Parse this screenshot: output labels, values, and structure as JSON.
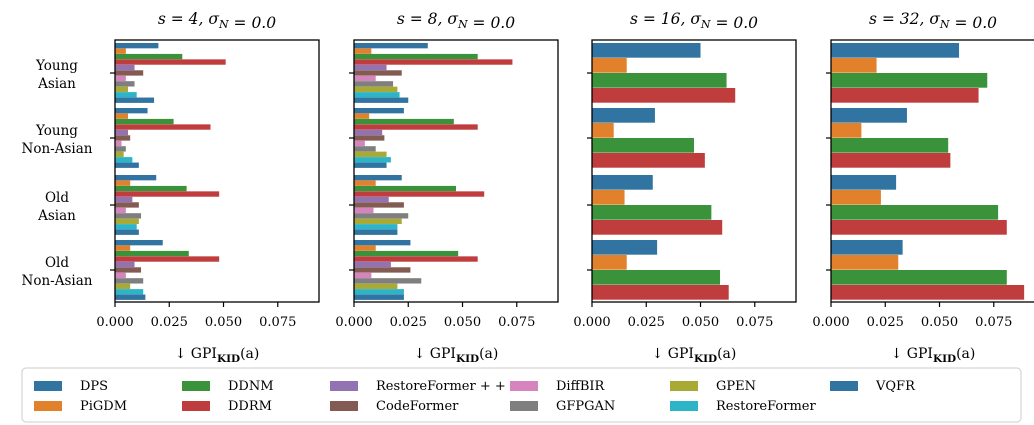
{
  "chart_data": {
    "type": "bar",
    "orientation": "horizontal",
    "categories": [
      "Young\nAsian",
      "Young\nNon-Asian",
      "Old\nAsian",
      "Old\nNon-Asian"
    ],
    "xlabel": "↓ GPI_KID(a)",
    "x_ticks": [
      0.0,
      0.025,
      0.05,
      0.075
    ],
    "x_tick_labels": [
      "0.000",
      "0.025",
      "0.050",
      "0.075"
    ],
    "legend_position": "bottom",
    "legend": [
      {
        "name": "DPS",
        "color": "#3274a1"
      },
      {
        "name": "PiGDM",
        "color": "#e1812c"
      },
      {
        "name": "DDNM",
        "color": "#3a923a"
      },
      {
        "name": "DDRM",
        "color": "#c03d3e"
      },
      {
        "name": "RestoreFormer++",
        "color": "#9372b2"
      },
      {
        "name": "CodeFormer",
        "color": "#845b53"
      },
      {
        "name": "DiffBIR",
        "color": "#d684bd"
      },
      {
        "name": "GFPGAN",
        "color": "#7f7f7f"
      },
      {
        "name": "GPEN",
        "color": "#a9aa35"
      },
      {
        "name": "RestoreFormer",
        "color": "#2eb4c7"
      },
      {
        "name": "VQFR",
        "color": "#3274a1"
      }
    ],
    "panels": [
      {
        "title": "s = 4, σ_N = 0.0",
        "xlim": [
          0,
          0.094
        ],
        "series": [
          {
            "name": "DPS",
            "values": [
              0.02,
              0.015,
              0.019,
              0.022
            ]
          },
          {
            "name": "PiGDM",
            "values": [
              0.005,
              0.006,
              0.007,
              0.007
            ]
          },
          {
            "name": "DDNM",
            "values": [
              0.031,
              0.027,
              0.033,
              0.034
            ]
          },
          {
            "name": "DDRM",
            "values": [
              0.051,
              0.044,
              0.048,
              0.048
            ]
          },
          {
            "name": "RestoreFormer++",
            "values": [
              0.009,
              0.006,
              0.008,
              0.009
            ]
          },
          {
            "name": "CodeFormer",
            "values": [
              0.013,
              0.007,
              0.011,
              0.012
            ]
          },
          {
            "name": "DiffBIR",
            "values": [
              0.005,
              0.003,
              0.005,
              0.005
            ]
          },
          {
            "name": "GFPGAN",
            "values": [
              0.009,
              0.005,
              0.012,
              0.013
            ]
          },
          {
            "name": "GPEN",
            "values": [
              0.006,
              0.004,
              0.011,
              0.007
            ]
          },
          {
            "name": "RestoreFormer",
            "values": [
              0.01,
              0.008,
              0.01,
              0.013
            ]
          },
          {
            "name": "VQFR",
            "values": [
              0.018,
              0.011,
              0.011,
              0.014
            ]
          }
        ]
      },
      {
        "title": "s = 8, σ_N = 0.0",
        "xlim": [
          0,
          0.094
        ],
        "series": [
          {
            "name": "DPS",
            "values": [
              0.034,
              0.023,
              0.022,
              0.026
            ]
          },
          {
            "name": "PiGDM",
            "values": [
              0.008,
              0.007,
              0.01,
              0.01
            ]
          },
          {
            "name": "DDNM",
            "values": [
              0.057,
              0.046,
              0.047,
              0.048
            ]
          },
          {
            "name": "DDRM",
            "values": [
              0.073,
              0.057,
              0.06,
              0.057
            ]
          },
          {
            "name": "RestoreFormer++",
            "values": [
              0.015,
              0.013,
              0.016,
              0.017
            ]
          },
          {
            "name": "CodeFormer",
            "values": [
              0.022,
              0.014,
              0.023,
              0.026
            ]
          },
          {
            "name": "DiffBIR",
            "values": [
              0.01,
              0.005,
              0.009,
              0.008
            ]
          },
          {
            "name": "GFPGAN",
            "values": [
              0.018,
              0.01,
              0.025,
              0.031
            ]
          },
          {
            "name": "GPEN",
            "values": [
              0.02,
              0.015,
              0.022,
              0.02
            ]
          },
          {
            "name": "RestoreFormer",
            "values": [
              0.021,
              0.017,
              0.02,
              0.023
            ]
          },
          {
            "name": "VQFR",
            "values": [
              0.025,
              0.015,
              0.02,
              0.023
            ]
          }
        ]
      },
      {
        "title": "s = 16, σ_N = 0.0",
        "xlim": [
          0,
          0.094
        ],
        "series": [
          {
            "name": "DPS",
            "values": [
              0.05,
              0.029,
              0.028,
              0.03
            ]
          },
          {
            "name": "PiGDM",
            "values": [
              0.016,
              0.01,
              0.015,
              0.016
            ]
          },
          {
            "name": "DDNM",
            "values": [
              0.062,
              0.047,
              0.055,
              0.059
            ]
          },
          {
            "name": "DDRM",
            "values": [
              0.066,
              0.052,
              0.06,
              0.063
            ]
          }
        ]
      },
      {
        "title": "s = 32, σ_N = 0.0",
        "xlim": [
          0,
          0.094
        ],
        "series": [
          {
            "name": "DPS",
            "values": [
              0.059,
              0.035,
              0.03,
              0.033
            ]
          },
          {
            "name": "PiGDM",
            "values": [
              0.021,
              0.014,
              0.023,
              0.031
            ]
          },
          {
            "name": "DDNM",
            "values": [
              0.072,
              0.054,
              0.077,
              0.081
            ]
          },
          {
            "name": "DDRM",
            "values": [
              0.068,
              0.055,
              0.081,
              0.089
            ]
          }
        ]
      }
    ]
  }
}
